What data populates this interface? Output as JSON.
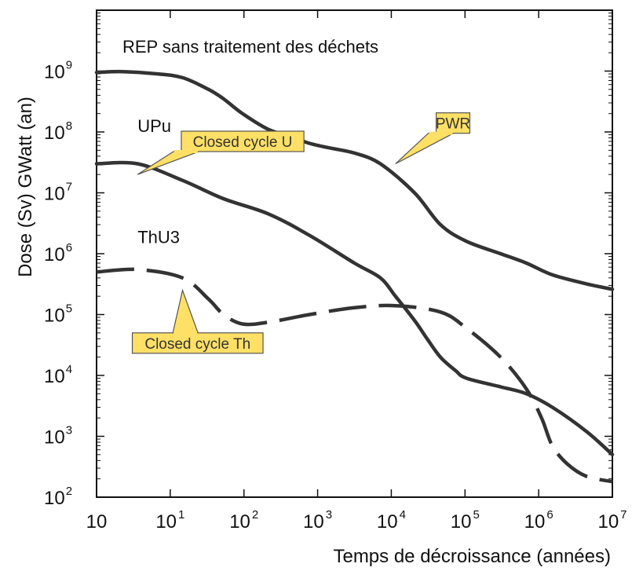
{
  "chart_data": {
    "type": "line",
    "title": "",
    "xlabel": "Temps de décroissance (années)",
    "ylabel": "Dose (Sv) GWatt (an)",
    "x_scale": "log",
    "y_scale": "log",
    "xlim": [
      10,
      10000000
    ],
    "ylim": [
      100,
      10000000000
    ],
    "grid": false,
    "x_ticks": [
      {
        "base": "10",
        "exp": ""
      },
      {
        "base": "10",
        "exp": "1"
      },
      {
        "base": "10",
        "exp": "2"
      },
      {
        "base": "10",
        "exp": "3"
      },
      {
        "base": "10",
        "exp": "4"
      },
      {
        "base": "10",
        "exp": "5"
      },
      {
        "base": "10",
        "exp": "6"
      },
      {
        "base": "10",
        "exp": "7"
      }
    ],
    "y_ticks": [
      {
        "base": "10",
        "exp": "2"
      },
      {
        "base": "10",
        "exp": "3"
      },
      {
        "base": "10",
        "exp": "4"
      },
      {
        "base": "10",
        "exp": "5"
      },
      {
        "base": "10",
        "exp": "6"
      },
      {
        "base": "10",
        "exp": "7"
      },
      {
        "base": "10",
        "exp": "8"
      },
      {
        "base": "10",
        "exp": "9"
      }
    ],
    "series": [
      {
        "name": "REP sans traitement des déchets",
        "style": "solid",
        "x": [
          10,
          20,
          50,
          100,
          200,
          300,
          500,
          1000,
          2000,
          3000,
          5000,
          10000,
          20000,
          50000,
          100000,
          200000,
          500000,
          1000000,
          2000000,
          5000000,
          10000000
        ],
        "y": [
          950000000,
          980000000,
          900000000,
          780000000,
          500000000,
          350000000,
          200000000,
          110000000,
          80000000,
          65000000,
          55000000,
          45000000,
          30000000,
          10000000,
          3000000,
          1600000,
          1000000,
          700000,
          450000,
          320000,
          260000
        ]
      },
      {
        "name": "UPu",
        "style": "solid",
        "x": [
          10,
          30,
          100,
          300,
          1000,
          3000,
          10000,
          20000,
          30000,
          50000,
          70000,
          100000,
          150000,
          200000,
          500000,
          1000000,
          2000000,
          5000000,
          10000000
        ],
        "y": [
          30000000,
          30000000,
          16000000,
          8000000,
          4500000,
          2000000,
          700000,
          400000,
          200000,
          80000,
          40000,
          20000,
          12000,
          9000,
          6500,
          5000,
          3000,
          1200,
          500
        ]
      },
      {
        "name": "ThU3",
        "style": "dashed",
        "x": [
          10,
          30,
          100,
          200,
          300,
          500,
          1000,
          3000,
          10000,
          30000,
          100000,
          200000,
          500000,
          1000000,
          1500000,
          2000000,
          3000000,
          5000000,
          10000000
        ],
        "y": [
          500000,
          550000,
          400000,
          180000,
          100000,
          70000,
          75000,
          100000,
          130000,
          140000,
          110000,
          60000,
          20000,
          6000,
          2000,
          700,
          350,
          220,
          180
        ]
      }
    ],
    "series_labels": [
      {
        "text": "REP sans traitement des déchets",
        "x": 20,
        "y": 2000000000
      },
      {
        "text": "UPu",
        "x": 30,
        "y": 100000000
      },
      {
        "text": "ThU3",
        "x": 30,
        "y": 1500000
      }
    ],
    "annotations": [
      {
        "text": "PWR",
        "x": 140000,
        "y": 140000000,
        "target_x": 30000,
        "target_y": 30000000
      },
      {
        "text": "Closed cycle U",
        "x": 500,
        "y": 70000000,
        "target_x": 30,
        "target_y": 20000000
      },
      {
        "text": "Closed cycle Th",
        "x": 150,
        "y": 34000,
        "target_x": 100,
        "target_y": 250000
      }
    ],
    "colors": {
      "line": "#333333",
      "callout_fill": "#ffe066",
      "callout_stroke": "#555555",
      "axis": "#111111"
    }
  }
}
